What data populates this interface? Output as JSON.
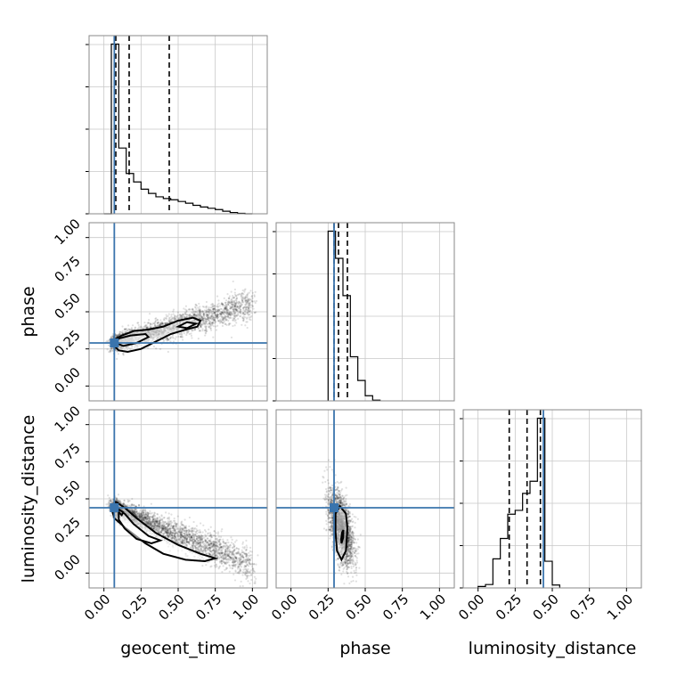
{
  "figure": {
    "type": "corner-plot"
  },
  "colors": {
    "truth": "#3a74ad",
    "hist": "#000000",
    "quantile": "#000000",
    "grid": "#c8c8c8",
    "frame": "#8a8a8a",
    "samples": "#000000"
  },
  "chart_data": {
    "type": "scatter",
    "subtype": "corner",
    "parameters": [
      "geocent_time",
      "phase",
      "luminosity_distance"
    ],
    "axis_range": [
      -0.1,
      1.1
    ],
    "ticks": [
      0.0,
      0.25,
      0.5,
      0.75,
      1.0
    ],
    "tick_labels": [
      "0.00",
      "0.25",
      "0.50",
      "0.75",
      "1.00"
    ],
    "truth": {
      "geocent_time": 0.07,
      "phase": 0.29,
      "luminosity_distance": 0.44
    },
    "quantiles": {
      "geocent_time": [
        0.08,
        0.17,
        0.44
      ],
      "phase": [
        0.29,
        0.32,
        0.38
      ],
      "luminosity_distance": [
        0.21,
        0.33,
        0.42
      ]
    },
    "histograms": {
      "geocent_time": {
        "edges": [
          0.0,
          0.05,
          0.1,
          0.15,
          0.2,
          0.25,
          0.3,
          0.35,
          0.4,
          0.45,
          0.5,
          0.55,
          0.6,
          0.65,
          0.7,
          0.75,
          0.8,
          0.85,
          0.9,
          0.95,
          1.0
        ],
        "counts": [
          0,
          4.0,
          1.55,
          0.95,
          0.75,
          0.58,
          0.48,
          0.4,
          0.36,
          0.33,
          0.29,
          0.25,
          0.2,
          0.16,
          0.13,
          0.1,
          0.06,
          0.03,
          0.01,
          0
        ]
      },
      "phase": {
        "edges": [
          0.25,
          0.3,
          0.35,
          0.4,
          0.45,
          0.5,
          0.55,
          0.6
        ],
        "counts": [
          5.0,
          4.2,
          3.1,
          1.3,
          0.6,
          0.15,
          0.02
        ]
      },
      "luminosity_distance": {
        "edges": [
          0.0,
          0.05,
          0.1,
          0.15,
          0.2,
          0.25,
          0.3,
          0.35,
          0.4,
          0.45,
          0.5,
          0.55
        ],
        "counts": [
          0.03,
          0.07,
          0.6,
          1.02,
          1.52,
          1.6,
          1.95,
          2.2,
          3.5,
          0.55,
          0.06
        ]
      }
    },
    "scatter_samples": {
      "phase_vs_geocent_time": {
        "trend": {
          "x": [
            0.07,
            1.0
          ],
          "y": [
            0.29,
            0.55
          ]
        },
        "spread": 0.045,
        "n": 3200
      },
      "luminosity_distance_vs_geocent_time": {
        "trend": {
          "x": [
            0.07,
            1.0
          ],
          "y": [
            0.44,
            0.05
          ]
        },
        "spread": 0.05,
        "n": 3200
      },
      "luminosity_distance_vs_phase": {
        "center": {
          "x": 0.34,
          "y": 0.3
        },
        "spread": {
          "x": 0.04,
          "y": 0.12
        },
        "corr": -0.55,
        "n": 2600
      }
    },
    "contours": {
      "phase_vs_geocent_time": [
        [
          [
            0.06,
            0.28
          ],
          [
            0.1,
            0.24
          ],
          [
            0.16,
            0.23
          ],
          [
            0.25,
            0.25
          ],
          [
            0.35,
            0.3
          ],
          [
            0.45,
            0.35
          ],
          [
            0.55,
            0.38
          ],
          [
            0.63,
            0.4
          ],
          [
            0.65,
            0.44
          ],
          [
            0.6,
            0.46
          ],
          [
            0.5,
            0.44
          ],
          [
            0.4,
            0.4
          ],
          [
            0.3,
            0.38
          ],
          [
            0.2,
            0.37
          ],
          [
            0.12,
            0.34
          ],
          [
            0.07,
            0.31
          ],
          [
            0.06,
            0.28
          ]
        ],
        [
          [
            0.08,
            0.29
          ],
          [
            0.13,
            0.27
          ],
          [
            0.22,
            0.29
          ],
          [
            0.3,
            0.33
          ],
          [
            0.28,
            0.35
          ],
          [
            0.18,
            0.34
          ],
          [
            0.1,
            0.32
          ],
          [
            0.08,
            0.29
          ]
        ],
        [
          [
            0.5,
            0.4
          ],
          [
            0.56,
            0.39
          ],
          [
            0.62,
            0.42
          ],
          [
            0.56,
            0.43
          ],
          [
            0.5,
            0.4
          ]
        ]
      ],
      "luminosity_distance_vs_geocent_time": [
        [
          [
            0.05,
            0.44
          ],
          [
            0.08,
            0.48
          ],
          [
            0.14,
            0.44
          ],
          [
            0.22,
            0.37
          ],
          [
            0.35,
            0.27
          ],
          [
            0.5,
            0.19
          ],
          [
            0.65,
            0.13
          ],
          [
            0.75,
            0.1
          ],
          [
            0.68,
            0.08
          ],
          [
            0.55,
            0.09
          ],
          [
            0.4,
            0.13
          ],
          [
            0.28,
            0.2
          ],
          [
            0.15,
            0.3
          ],
          [
            0.07,
            0.37
          ],
          [
            0.05,
            0.44
          ]
        ],
        [
          [
            0.1,
            0.42
          ],
          [
            0.14,
            0.4
          ],
          [
            0.2,
            0.33
          ],
          [
            0.3,
            0.25
          ],
          [
            0.38,
            0.22
          ],
          [
            0.32,
            0.2
          ],
          [
            0.22,
            0.23
          ],
          [
            0.14,
            0.3
          ],
          [
            0.1,
            0.36
          ],
          [
            0.1,
            0.42
          ]
        ],
        [
          [
            0.1,
            0.43
          ],
          [
            0.13,
            0.41
          ],
          [
            0.12,
            0.39
          ],
          [
            0.1,
            0.41
          ],
          [
            0.1,
            0.43
          ]
        ]
      ],
      "luminosity_distance_vs_phase": [
        [
          [
            0.3,
            0.4
          ],
          [
            0.33,
            0.45
          ],
          [
            0.37,
            0.4
          ],
          [
            0.38,
            0.3
          ],
          [
            0.37,
            0.15
          ],
          [
            0.34,
            0.09
          ],
          [
            0.31,
            0.15
          ],
          [
            0.3,
            0.28
          ],
          [
            0.3,
            0.4
          ]
        ],
        [
          [
            0.34,
            0.2
          ],
          [
            0.352,
            0.24
          ],
          [
            0.353,
            0.29
          ],
          [
            0.343,
            0.27
          ],
          [
            0.338,
            0.23
          ],
          [
            0.34,
            0.2
          ]
        ]
      ]
    }
  }
}
